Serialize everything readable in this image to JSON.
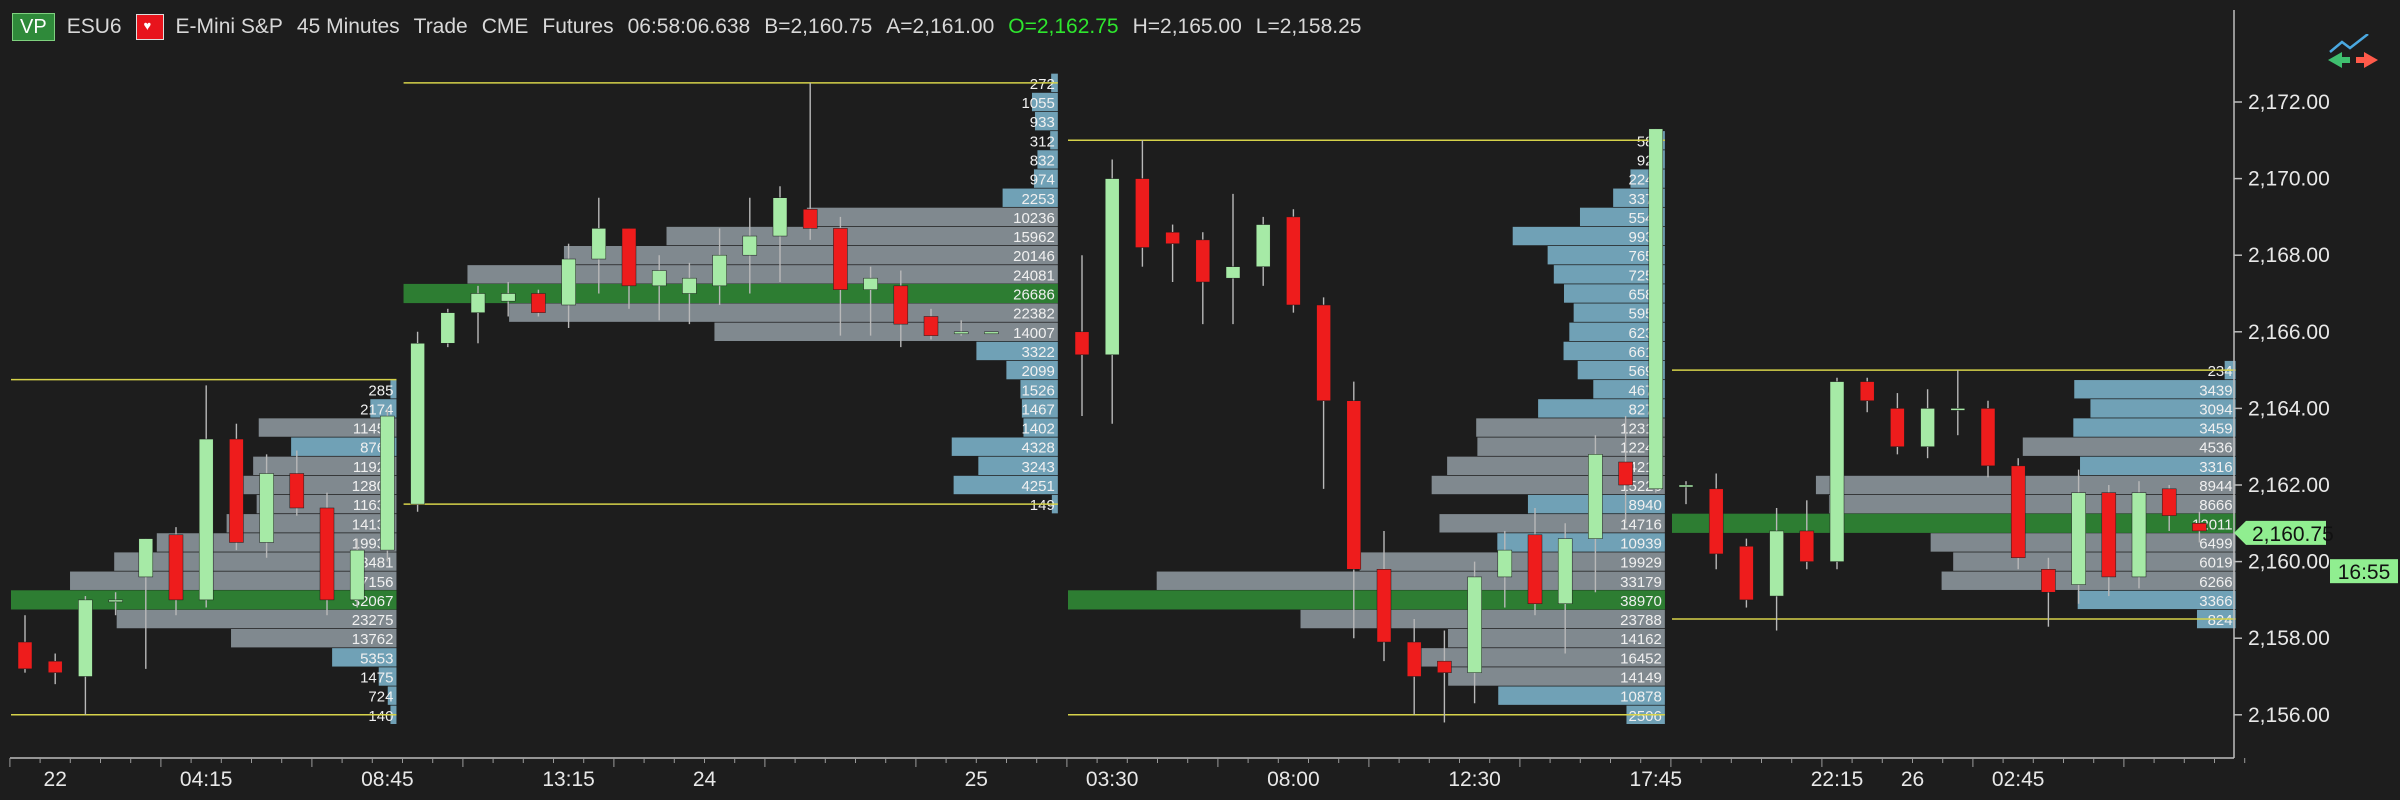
{
  "header": {
    "vp_badge": "VP",
    "symbol": "ESU6",
    "instrument": "E-Mini S&P",
    "timeframe": "45 Minutes",
    "data_type": "Trade",
    "exchange": "CME",
    "market": "Futures",
    "time": "06:58:06.638",
    "bid": "B=2,160.75",
    "ask": "A=2,161.00",
    "open": "O=2,162.75",
    "high": "H=2,165.00",
    "low": "L=2,158.25"
  },
  "colors": {
    "background": "#1d1d1d",
    "up_candle": "#a6eaa6",
    "down_candle": "#ee1c1c",
    "profile_blue": "#7ab0c8",
    "profile_gray": "#8c969c",
    "poc_green": "#2e7d32",
    "value_area_line": "#d6d24a",
    "price_marker": "#90ee90",
    "axis_text": "#e8e8e8"
  },
  "chart_data": {
    "type": "candlestick_volume_profile",
    "instrument": "E-Mini S&P (ESU6)",
    "timeframe": "45 Minutes",
    "y_axis": {
      "range": [
        2155.0,
        2173.5
      ],
      "tick_step": 2,
      "ticks": [
        "2,156.00",
        "2,158.00",
        "2,160.00",
        "2,162.00",
        "2,164.00",
        "2,166.00",
        "2,168.00",
        "2,170.00",
        "2,172.00"
      ]
    },
    "x_axis": {
      "labels": [
        {
          "text": "22",
          "bar": 1
        },
        {
          "text": "04:15",
          "bar": 6
        },
        {
          "text": "08:45",
          "bar": 12
        },
        {
          "text": "13:15",
          "bar": 18
        },
        {
          "text": "24",
          "bar": 22.5
        },
        {
          "text": "25",
          "bar": 31.5
        },
        {
          "text": "03:30",
          "bar": 36
        },
        {
          "text": "08:00",
          "bar": 42
        },
        {
          "text": "12:30",
          "bar": 48
        },
        {
          "text": "17:45",
          "bar": 54
        },
        {
          "text": "22:15",
          "bar": 60
        },
        {
          "text": "26",
          "bar": 62.5
        },
        {
          "text": "02:45",
          "bar": 66
        }
      ]
    },
    "candles": [
      {
        "bar": 0,
        "o": 2157.9,
        "h": 2158.6,
        "l": 2157.1,
        "c": 2157.2
      },
      {
        "bar": 1,
        "o": 2157.4,
        "h": 2157.6,
        "l": 2156.8,
        "c": 2157.1
      },
      {
        "bar": 2,
        "o": 2157.0,
        "h": 2159.1,
        "l": 2156.0,
        "c": 2159.0
      },
      {
        "bar": 3,
        "o": 2159.0,
        "h": 2159.2,
        "l": 2158.6,
        "c": 2159.0
      },
      {
        "bar": 4,
        "o": 2159.6,
        "h": 2160.6,
        "l": 2157.2,
        "c": 2160.6
      },
      {
        "bar": 5,
        "o": 2160.7,
        "h": 2160.9,
        "l": 2158.6,
        "c": 2159.0
      },
      {
        "bar": 6,
        "o": 2159.0,
        "h": 2164.6,
        "l": 2158.8,
        "c": 2163.2
      },
      {
        "bar": 7,
        "o": 2163.2,
        "h": 2163.6,
        "l": 2160.3,
        "c": 2160.5
      },
      {
        "bar": 8,
        "o": 2160.5,
        "h": 2162.8,
        "l": 2160.1,
        "c": 2162.3
      },
      {
        "bar": 9,
        "o": 2162.3,
        "h": 2162.9,
        "l": 2161.2,
        "c": 2161.4
      },
      {
        "bar": 10,
        "o": 2161.4,
        "h": 2161.8,
        "l": 2158.6,
        "c": 2159.0
      },
      {
        "bar": 11,
        "o": 2159.0,
        "h": 2160.6,
        "l": 2158.8,
        "c": 2160.3
      },
      {
        "bar": 12,
        "o": 2160.3,
        "h": 2164.0,
        "l": 2160.0,
        "c": 2163.8
      },
      {
        "bar": 13,
        "o": 2161.5,
        "h": 2166.0,
        "l": 2161.3,
        "c": 2165.7
      },
      {
        "bar": 14,
        "o": 2165.7,
        "h": 2166.6,
        "l": 2165.6,
        "c": 2166.5
      },
      {
        "bar": 15,
        "o": 2166.5,
        "h": 2167.2,
        "l": 2165.7,
        "c": 2167.0
      },
      {
        "bar": 16,
        "o": 2166.8,
        "h": 2167.3,
        "l": 2166.4,
        "c": 2167.0
      },
      {
        "bar": 17,
        "o": 2167.0,
        "h": 2167.1,
        "l": 2166.4,
        "c": 2166.5
      },
      {
        "bar": 18,
        "o": 2166.7,
        "h": 2168.3,
        "l": 2166.1,
        "c": 2167.9
      },
      {
        "bar": 19,
        "o": 2167.9,
        "h": 2169.5,
        "l": 2167.0,
        "c": 2168.7
      },
      {
        "bar": 20,
        "o": 2168.7,
        "h": 2168.7,
        "l": 2166.6,
        "c": 2167.2
      },
      {
        "bar": 21,
        "o": 2167.2,
        "h": 2168.0,
        "l": 2166.3,
        "c": 2167.6
      },
      {
        "bar": 22,
        "o": 2167.0,
        "h": 2167.8,
        "l": 2166.2,
        "c": 2167.4
      },
      {
        "bar": 23,
        "o": 2167.2,
        "h": 2168.7,
        "l": 2166.7,
        "c": 2168.0
      },
      {
        "bar": 24,
        "o": 2168.0,
        "h": 2169.5,
        "l": 2167.0,
        "c": 2168.5
      },
      {
        "bar": 25,
        "o": 2168.5,
        "h": 2169.8,
        "l": 2167.3,
        "c": 2169.5
      },
      {
        "bar": 26,
        "o": 2169.2,
        "h": 2172.5,
        "l": 2168.4,
        "c": 2168.7
      },
      {
        "bar": 27,
        "o": 2168.7,
        "h": 2169.0,
        "l": 2165.9,
        "c": 2167.1
      },
      {
        "bar": 28,
        "o": 2167.1,
        "h": 2167.7,
        "l": 2165.9,
        "c": 2167.4
      },
      {
        "bar": 29,
        "o": 2167.2,
        "h": 2167.6,
        "l": 2165.6,
        "c": 2166.2
      },
      {
        "bar": 30,
        "o": 2166.4,
        "h": 2166.6,
        "l": 2165.8,
        "c": 2165.9
      },
      {
        "bar": 31,
        "o": 2166.0,
        "h": 2166.3,
        "l": 2165.9,
        "c": 2166.0
      },
      {
        "bar": 32,
        "o": 2166.0,
        "h": 2166.0,
        "l": 2166.0,
        "c": 2166.0
      },
      {
        "bar": 35,
        "o": 2166.0,
        "h": 2168.0,
        "l": 2163.8,
        "c": 2165.4
      },
      {
        "bar": 36,
        "o": 2165.4,
        "h": 2170.5,
        "l": 2163.6,
        "c": 2170.0
      },
      {
        "bar": 37,
        "o": 2170.0,
        "h": 2171.0,
        "l": 2167.7,
        "c": 2168.2
      },
      {
        "bar": 38,
        "o": 2168.6,
        "h": 2168.8,
        "l": 2167.3,
        "c": 2168.3
      },
      {
        "bar": 39,
        "o": 2168.4,
        "h": 2168.6,
        "l": 2166.2,
        "c": 2167.3
      },
      {
        "bar": 40,
        "o": 2167.4,
        "h": 2169.6,
        "l": 2166.2,
        "c": 2167.7
      },
      {
        "bar": 41,
        "o": 2167.7,
        "h": 2169.0,
        "l": 2167.2,
        "c": 2168.8
      },
      {
        "bar": 42,
        "o": 2169.0,
        "h": 2169.2,
        "l": 2166.5,
        "c": 2166.7
      },
      {
        "bar": 43,
        "o": 2166.7,
        "h": 2166.9,
        "l": 2161.9,
        "c": 2164.2
      },
      {
        "bar": 44,
        "o": 2164.2,
        "h": 2164.7,
        "l": 2158.0,
        "c": 2159.8
      },
      {
        "bar": 45,
        "o": 2159.8,
        "h": 2160.8,
        "l": 2157.4,
        "c": 2157.9
      },
      {
        "bar": 46,
        "o": 2157.9,
        "h": 2158.5,
        "l": 2156.0,
        "c": 2157.0
      },
      {
        "bar": 47,
        "o": 2157.4,
        "h": 2158.2,
        "l": 2155.8,
        "c": 2157.1
      },
      {
        "bar": 48,
        "o": 2157.1,
        "h": 2160.0,
        "l": 2156.3,
        "c": 2159.6
      },
      {
        "bar": 49,
        "o": 2159.6,
        "h": 2160.8,
        "l": 2158.8,
        "c": 2160.3
      },
      {
        "bar": 50,
        "o": 2160.7,
        "h": 2161.4,
        "l": 2158.6,
        "c": 2158.9
      },
      {
        "bar": 51,
        "o": 2158.9,
        "h": 2161.0,
        "l": 2157.6,
        "c": 2160.6
      },
      {
        "bar": 52,
        "o": 2160.6,
        "h": 2163.3,
        "l": 2159.2,
        "c": 2162.8
      },
      {
        "bar": 53,
        "o": 2162.6,
        "h": 2163.8,
        "l": 2161.0,
        "c": 2162.0
      },
      {
        "bar": 54,
        "o": 2161.9,
        "h": 2171.3,
        "l": 2161.8,
        "c": 2171.3
      },
      {
        "bar": 55,
        "o": 2162.0,
        "h": 2162.1,
        "l": 2161.5,
        "c": 2162.0
      },
      {
        "bar": 56,
        "o": 2161.9,
        "h": 2162.3,
        "l": 2159.8,
        "c": 2160.2
      },
      {
        "bar": 57,
        "o": 2160.4,
        "h": 2160.6,
        "l": 2158.8,
        "c": 2159.0
      },
      {
        "bar": 58,
        "o": 2159.1,
        "h": 2161.4,
        "l": 2158.2,
        "c": 2160.8
      },
      {
        "bar": 59,
        "o": 2160.8,
        "h": 2161.6,
        "l": 2159.8,
        "c": 2160.0
      },
      {
        "bar": 60,
        "o": 2160.0,
        "h": 2164.8,
        "l": 2159.8,
        "c": 2164.7
      },
      {
        "bar": 61,
        "o": 2164.7,
        "h": 2164.8,
        "l": 2163.9,
        "c": 2164.2
      },
      {
        "bar": 62,
        "o": 2164.0,
        "h": 2164.4,
        "l": 2162.8,
        "c": 2163.0
      },
      {
        "bar": 63,
        "o": 2163.0,
        "h": 2164.5,
        "l": 2162.7,
        "c": 2164.0
      },
      {
        "bar": 64,
        "o": 2164.0,
        "h": 2165.0,
        "l": 2163.3,
        "c": 2164.0
      },
      {
        "bar": 65,
        "o": 2164.0,
        "h": 2164.2,
        "l": 2162.2,
        "c": 2162.5
      },
      {
        "bar": 66,
        "o": 2162.5,
        "h": 2162.7,
        "l": 2159.8,
        "c": 2160.1
      },
      {
        "bar": 67,
        "o": 2159.8,
        "h": 2160.1,
        "l": 2158.3,
        "c": 2159.2
      },
      {
        "bar": 68,
        "o": 2159.4,
        "h": 2162.4,
        "l": 2158.9,
        "c": 2161.8
      },
      {
        "bar": 69,
        "o": 2161.8,
        "h": 2162.0,
        "l": 2159.1,
        "c": 2159.6
      },
      {
        "bar": 70,
        "o": 2159.6,
        "h": 2162.1,
        "l": 2159.3,
        "c": 2161.8
      },
      {
        "bar": 71,
        "o": 2161.9,
        "h": 2162.0,
        "l": 2160.8,
        "c": 2161.2
      },
      {
        "bar": 72,
        "o": 2161.0,
        "h": 2161.3,
        "l": 2160.5,
        "c": 2160.8
      }
    ],
    "profiles": [
      {
        "start_bar": 0,
        "end_bar": 12.3,
        "high": 2164.75,
        "low": 2156.0,
        "poc": 2159.0,
        "rows": [
          {
            "price": 2164.5,
            "vol": 285
          },
          {
            "price": 2164.0,
            "vol": 2174
          },
          {
            "price": 2163.5,
            "vol": 11458
          },
          {
            "price": 2163.0,
            "vol": 8764
          },
          {
            "price": 2162.5,
            "vol": 11922
          },
          {
            "price": 2162.0,
            "vol": 12804
          },
          {
            "price": 2161.5,
            "vol": 11631
          },
          {
            "price": 2161.0,
            "vol": 14130
          },
          {
            "price": 2160.5,
            "vol": 19937
          },
          {
            "price": 2160.0,
            "vol": 23481
          },
          {
            "price": 2159.5,
            "vol": 27156
          },
          {
            "price": 2159.0,
            "vol": 32067
          },
          {
            "price": 2158.5,
            "vol": 23275
          },
          {
            "price": 2158.0,
            "vol": 13762
          },
          {
            "price": 2157.5,
            "vol": 5353
          },
          {
            "price": 2157.0,
            "vol": 1475
          },
          {
            "price": 2156.5,
            "vol": 724
          },
          {
            "price": 2156.0,
            "vol": 140
          }
        ]
      },
      {
        "start_bar": 13,
        "end_bar": 34.2,
        "high": 2172.5,
        "low": 2161.5,
        "poc": 2167.0,
        "rows": [
          {
            "price": 2172.5,
            "vol": 272
          },
          {
            "price": 2172.0,
            "vol": 1055
          },
          {
            "price": 2171.5,
            "vol": 933
          },
          {
            "price": 2171.0,
            "vol": 312
          },
          {
            "price": 2170.5,
            "vol": 832
          },
          {
            "price": 2170.0,
            "vol": 974
          },
          {
            "price": 2169.5,
            "vol": 2253
          },
          {
            "price": 2169.0,
            "vol": 10236
          },
          {
            "price": 2168.5,
            "vol": 15962
          },
          {
            "price": 2168.0,
            "vol": 20146
          },
          {
            "price": 2167.5,
            "vol": 24081
          },
          {
            "price": 2167.0,
            "vol": 26686
          },
          {
            "price": 2166.5,
            "vol": 22382
          },
          {
            "price": 2166.0,
            "vol": 14007
          },
          {
            "price": 2165.5,
            "vol": 3322
          },
          {
            "price": 2165.0,
            "vol": 2099
          },
          {
            "price": 2164.5,
            "vol": 1526
          },
          {
            "price": 2164.0,
            "vol": 1467
          },
          {
            "price": 2163.5,
            "vol": 1402
          },
          {
            "price": 2163.0,
            "vol": 4328
          },
          {
            "price": 2162.5,
            "vol": 3243
          },
          {
            "price": 2162.0,
            "vol": 4251
          },
          {
            "price": 2161.5,
            "vol": 149
          }
        ]
      },
      {
        "start_bar": 35,
        "end_bar": 54.3,
        "high": 2171.0,
        "low": 2156.0,
        "poc": 2159.0,
        "rows": [
          {
            "price": 2171.0,
            "vol": 584
          },
          {
            "price": 2170.5,
            "vol": 921
          },
          {
            "price": 2170.0,
            "vol": 2246
          },
          {
            "price": 2169.5,
            "vol": 3376
          },
          {
            "price": 2169.0,
            "vol": 5542
          },
          {
            "price": 2168.5,
            "vol": 9934
          },
          {
            "price": 2168.0,
            "vol": 7654
          },
          {
            "price": 2167.5,
            "vol": 7251
          },
          {
            "price": 2167.0,
            "vol": 6586
          },
          {
            "price": 2166.5,
            "vol": 5955
          },
          {
            "price": 2166.0,
            "vol": 6238
          },
          {
            "price": 2165.5,
            "vol": 6615
          },
          {
            "price": 2165.0,
            "vol": 5691
          },
          {
            "price": 2164.5,
            "vol": 4673
          },
          {
            "price": 2164.0,
            "vol": 8275
          },
          {
            "price": 2163.5,
            "vol": 12318
          },
          {
            "price": 2163.0,
            "vol": 12241
          },
          {
            "price": 2162.5,
            "vol": 14217
          },
          {
            "price": 2162.0,
            "vol": 15226
          },
          {
            "price": 2161.5,
            "vol": 8940
          },
          {
            "price": 2161.0,
            "vol": 14716
          },
          {
            "price": 2160.5,
            "vol": 10939
          },
          {
            "price": 2160.0,
            "vol": 19929
          },
          {
            "price": 2159.5,
            "vol": 33179
          },
          {
            "price": 2159.0,
            "vol": 38970
          },
          {
            "price": 2158.5,
            "vol": 23788
          },
          {
            "price": 2158.0,
            "vol": 14162
          },
          {
            "price": 2157.5,
            "vol": 16452
          },
          {
            "price": 2157.0,
            "vol": 14149
          },
          {
            "price": 2156.5,
            "vol": 10878
          },
          {
            "price": 2156.0,
            "vol": 2506
          }
        ]
      },
      {
        "start_bar": 55,
        "end_bar": 73.2,
        "high": 2165.0,
        "low": 2158.5,
        "poc": 2161.0,
        "rows": [
          {
            "price": 2165.0,
            "vol": 234
          },
          {
            "price": 2164.5,
            "vol": 3439
          },
          {
            "price": 2164.0,
            "vol": 3094
          },
          {
            "price": 2163.5,
            "vol": 3459
          },
          {
            "price": 2163.0,
            "vol": 4536
          },
          {
            "price": 2162.5,
            "vol": 3316
          },
          {
            "price": 2162.0,
            "vol": 8944
          },
          {
            "price": 2161.5,
            "vol": 8666
          },
          {
            "price": 2161.0,
            "vol": 12011
          },
          {
            "price": 2160.5,
            "vol": 6499
          },
          {
            "price": 2160.0,
            "vol": 6019
          },
          {
            "price": 2159.5,
            "vol": 6266
          },
          {
            "price": 2159.0,
            "vol": 3366
          },
          {
            "price": 2158.5,
            "vol": 824
          }
        ]
      }
    ],
    "current_price": {
      "value": 2160.75,
      "label": "2,160.75"
    },
    "countdown": {
      "value": 2159.75,
      "label": "16:55"
    }
  }
}
